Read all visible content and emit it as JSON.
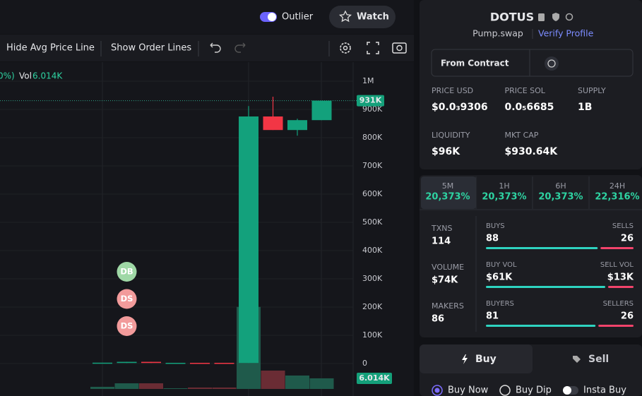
{
  "topbar": {
    "toggle": "Outlier",
    "watch": "Watch"
  },
  "toolbar": {
    "avg_line": "Hide Avg Price Line",
    "order_lines": "Show Order Lines"
  },
  "chart": {
    "legend": {
      "cut": "0%)",
      "vol": "Vol"
    },
    "yticks": [
      {
        "value": 1000000,
        "label": "1M"
      },
      {
        "value": 900000,
        "label": "900K"
      },
      {
        "value": 800000,
        "label": "800K"
      },
      {
        "value": 700000,
        "label": "700K"
      },
      {
        "value": 600000,
        "label": "600K"
      },
      {
        "value": 500000,
        "label": "500K"
      },
      {
        "value": 400000,
        "label": "400K"
      },
      {
        "value": 300000,
        "label": "300K"
      },
      {
        "value": 200000,
        "label": "200K"
      },
      {
        "value": 100000,
        "label": "100K"
      },
      0
    ],
    "price_marker": {
      "value": 931000,
      "label": "931K"
    },
    "volume_marker": {
      "value": 6014,
      "label": "6.014K"
    },
    "candles": [
      {
        "open": 3000,
        "close": 3000,
        "high": 3000,
        "low": 3000,
        "volume": 1200
      },
      {
        "open": 2000,
        "close": 6000,
        "high": 6000,
        "low": 2000,
        "volume": 3200
      },
      {
        "open": 6000,
        "close": 2000,
        "high": 6000,
        "low": 2000,
        "volume": 3200
      },
      {
        "open": 2000,
        "close": 2500,
        "high": 2500,
        "low": 2000,
        "volume": 400
      },
      {
        "open": 2500,
        "close": 2000,
        "high": 2500,
        "low": 2000,
        "volume": 800
      },
      {
        "open": 2500,
        "close": 2000,
        "high": 2500,
        "low": 2000,
        "volume": 800
      },
      {
        "open": 2000,
        "close": 875000,
        "high": 912000,
        "low": 2000,
        "volume": 46500
      },
      {
        "open": 875000,
        "close": 827000,
        "high": 945000,
        "low": 827000,
        "volume": 10400
      },
      {
        "open": 827000,
        "close": 862000,
        "high": 867000,
        "low": 807000,
        "volume": 7600
      },
      {
        "open": 862000,
        "close": 931000,
        "high": 931000,
        "low": 862000,
        "volume": 6014
      }
    ],
    "trade_markers": [
      "DB",
      "DS",
      "DS"
    ]
  },
  "token": {
    "symbol": "DOTUS",
    "dex": "Pump.swap",
    "verify": "Verify Profile",
    "source": "From Contract"
  },
  "stats": [
    {
      "label": "PRICE USD",
      "value": "$0.0₃9306"
    },
    {
      "label": "PRICE SOL",
      "value": "0.0₅6685"
    },
    {
      "label": "SUPPLY",
      "value": "1B"
    },
    {
      "label": "LIQUIDITY",
      "value": "$96K"
    },
    {
      "label": "MKT CAP",
      "value": "$930.64K"
    }
  ],
  "changes": [
    {
      "period": "5M",
      "value": "20,373%"
    },
    {
      "period": "1H",
      "value": "20,373%"
    },
    {
      "period": "6H",
      "value": "20,373%"
    },
    {
      "period": "24H",
      "value": "22,316%"
    }
  ],
  "flows": [
    {
      "label": "TXNS",
      "total": "114",
      "left_label": "BUYS",
      "left": 88,
      "right_label": "SELLS",
      "right": 26
    },
    {
      "label": "VOLUME",
      "total": "$74K",
      "left_label": "BUY VOL",
      "left": 61000,
      "left_text": "$61K",
      "right_label": "SELL VOL",
      "right": 13000,
      "right_text": "$13K"
    },
    {
      "label": "MAKERS",
      "total": "86",
      "left_label": "BUYERS",
      "left": 81,
      "right_label": "SELLERS",
      "right": 26
    }
  ],
  "trade": {
    "buy": "Buy",
    "sell": "Sell",
    "options": [
      "Buy Now",
      "Buy Dip",
      "Insta Buy"
    ]
  }
}
